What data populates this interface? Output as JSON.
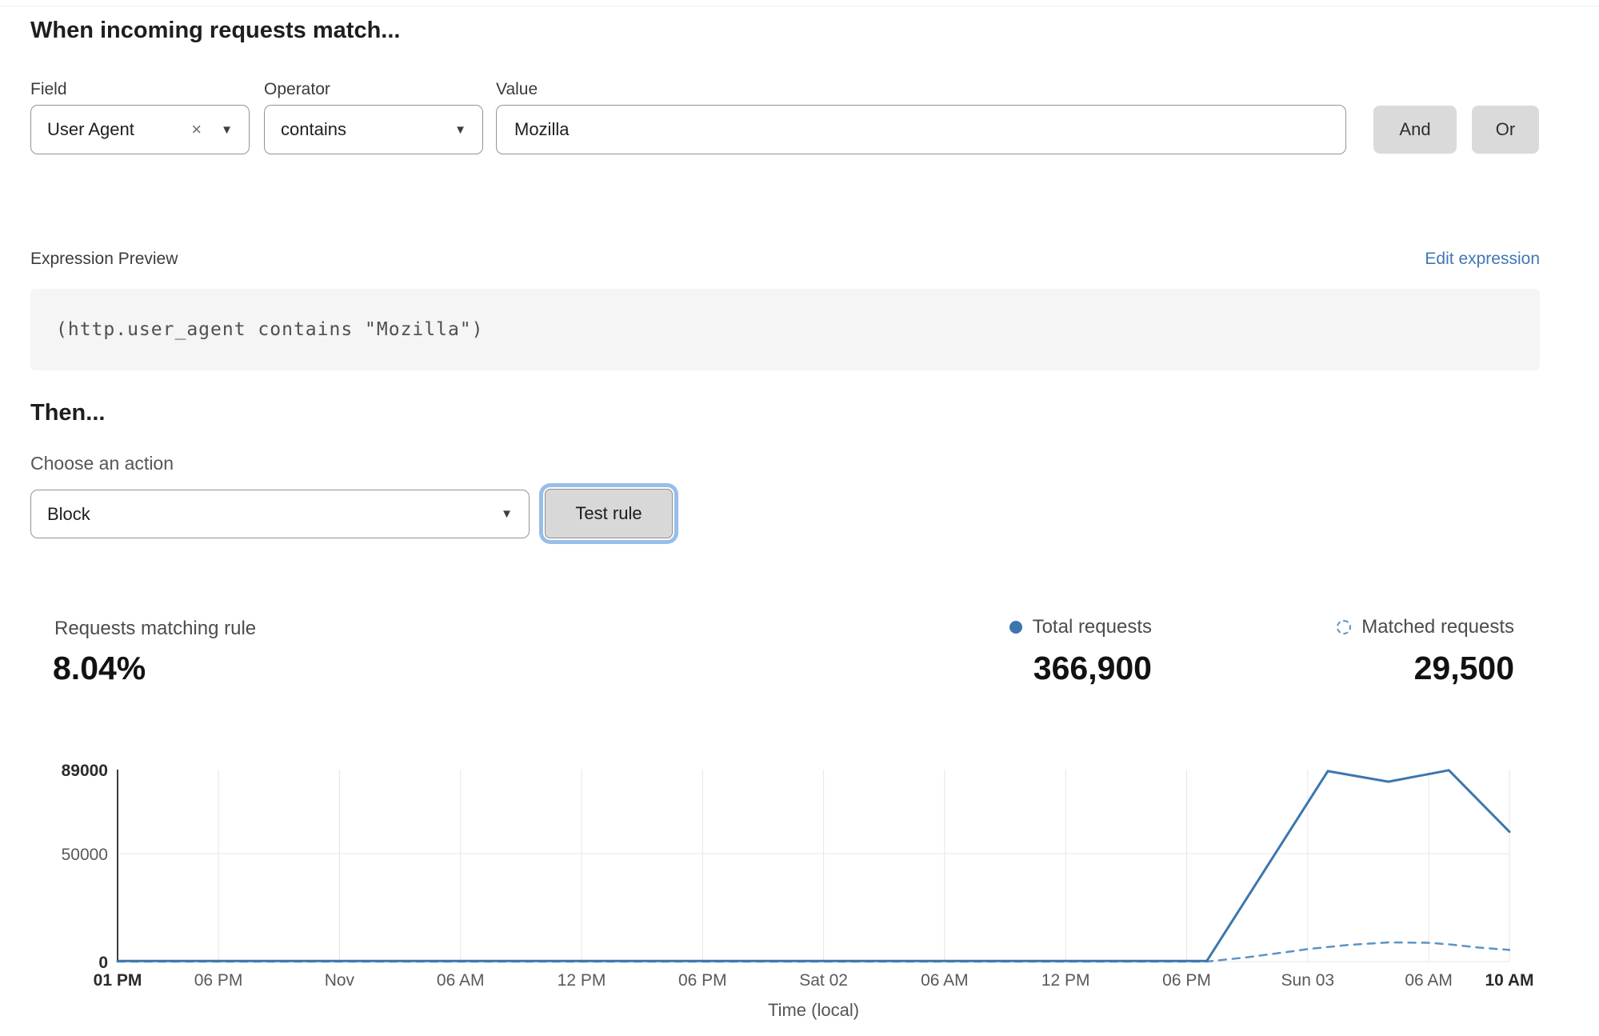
{
  "rule_builder": {
    "heading": "When incoming requests match...",
    "field": {
      "label": "Field",
      "value": "User Agent"
    },
    "operator": {
      "label": "Operator",
      "value": "contains"
    },
    "value": {
      "label": "Value",
      "value": "Mozilla"
    },
    "and_label": "And",
    "or_label": "Or"
  },
  "expression": {
    "label": "Expression Preview",
    "edit_link": "Edit expression",
    "code": "(http.user_agent contains \"Mozilla\")"
  },
  "action": {
    "heading": "Then...",
    "choose_label": "Choose an action",
    "selected": "Block",
    "test_button": "Test rule"
  },
  "stats": {
    "matching": {
      "label": "Requests matching rule",
      "value": "8.04%"
    },
    "total": {
      "label": "Total requests",
      "value": "366,900"
    },
    "matched": {
      "label": "Matched requests",
      "value": "29,500"
    }
  },
  "icons": {
    "caret": "▼",
    "clear": "×"
  },
  "colors": {
    "line_solid": "#3d76ad",
    "line_dashed": "#5e92c4",
    "link_blue": "#4077b5",
    "grid": "#e6e6e6"
  },
  "chart_data": {
    "type": "line",
    "title": "",
    "xlabel": "Time (local)",
    "ylabel": "",
    "ylim": [
      0,
      89000
    ],
    "x_total_hours": 69,
    "grid": true,
    "legend_position": "top-right",
    "yticks": [
      {
        "value": 0,
        "label": "0",
        "bold": true
      },
      {
        "value": 50000,
        "label": "50000",
        "bold": false
      },
      {
        "value": 89000,
        "label": "89000",
        "bold": true
      }
    ],
    "xticks": [
      {
        "h": 0,
        "label": "01 PM",
        "bold": true
      },
      {
        "h": 5,
        "label": "06 PM",
        "bold": false
      },
      {
        "h": 11,
        "label": "Nov",
        "bold": false
      },
      {
        "h": 17,
        "label": "06 AM",
        "bold": false
      },
      {
        "h": 23,
        "label": "12 PM",
        "bold": false
      },
      {
        "h": 29,
        "label": "06 PM",
        "bold": false
      },
      {
        "h": 35,
        "label": "Sat 02",
        "bold": false
      },
      {
        "h": 41,
        "label": "06 AM",
        "bold": false
      },
      {
        "h": 47,
        "label": "12 PM",
        "bold": false
      },
      {
        "h": 53,
        "label": "06 PM",
        "bold": false
      },
      {
        "h": 59,
        "label": "Sun 03",
        "bold": false
      },
      {
        "h": 65,
        "label": "06 AM",
        "bold": false
      },
      {
        "h": 69,
        "label": "10 AM",
        "bold": true
      }
    ],
    "series": [
      {
        "name": "Total requests",
        "style": "solid",
        "color": "#3d76ad",
        "points": [
          [
            0,
            300
          ],
          [
            54,
            300
          ],
          [
            60,
            88300
          ],
          [
            63,
            83400
          ],
          [
            66,
            88700
          ],
          [
            69,
            60200
          ]
        ]
      },
      {
        "name": "Matched requests",
        "style": "dashed",
        "color": "#5e92c4",
        "points": [
          [
            0,
            0
          ],
          [
            54,
            0
          ],
          [
            56,
            2000
          ],
          [
            58,
            4500
          ],
          [
            59,
            5800
          ],
          [
            61,
            7700
          ],
          [
            63,
            8900
          ],
          [
            65,
            8700
          ],
          [
            66,
            8000
          ],
          [
            67.5,
            6500
          ],
          [
            69,
            5400
          ]
        ]
      }
    ]
  }
}
